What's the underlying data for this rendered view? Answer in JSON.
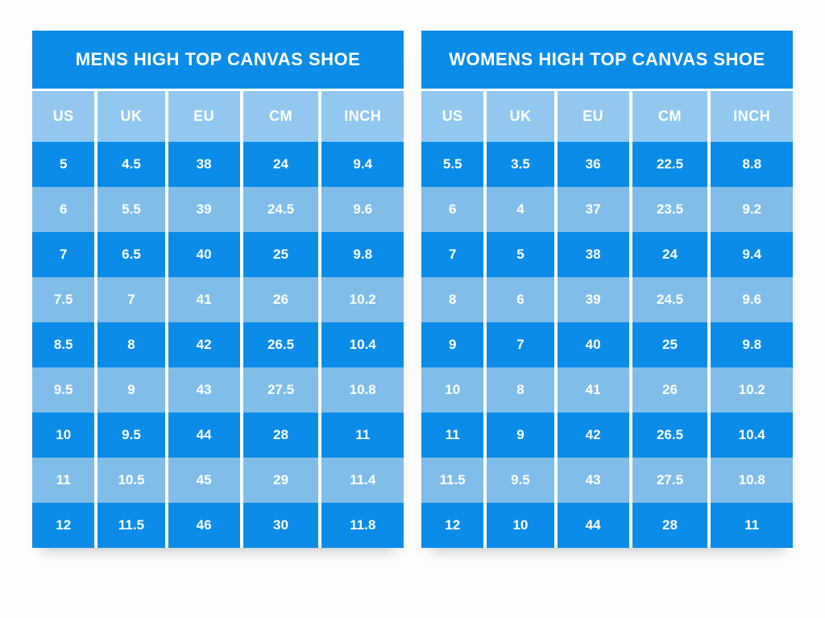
{
  "colors": {
    "dark_row": "#0b8ce8",
    "light_row": "#80bde9",
    "header_row": "#92c8f0",
    "separator": "#ffffff",
    "text": "#ffffff",
    "page_background": "#fdfdfd"
  },
  "chart_data": [
    {
      "type": "table",
      "title": "MENS HIGH TOP CANVAS SHOE",
      "columns": [
        "US",
        "UK",
        "EU",
        "CM",
        "INCH"
      ],
      "rows": [
        [
          "5",
          "4.5",
          "38",
          "24",
          "9.4"
        ],
        [
          "6",
          "5.5",
          "39",
          "24.5",
          "9.6"
        ],
        [
          "7",
          "6.5",
          "40",
          "25",
          "9.8"
        ],
        [
          "7.5",
          "7",
          "41",
          "26",
          "10.2"
        ],
        [
          "8.5",
          "8",
          "42",
          "26.5",
          "10.4"
        ],
        [
          "9.5",
          "9",
          "43",
          "27.5",
          "10.8"
        ],
        [
          "10",
          "9.5",
          "44",
          "28",
          "11"
        ],
        [
          "11",
          "10.5",
          "45",
          "29",
          "11.4"
        ],
        [
          "12",
          "11.5",
          "46",
          "30",
          "11.8"
        ]
      ]
    },
    {
      "type": "table",
      "title": "WOMENS HIGH TOP CANVAS SHOE",
      "columns": [
        "US",
        "UK",
        "EU",
        "CM",
        "INCH"
      ],
      "rows": [
        [
          "5.5",
          "3.5",
          "36",
          "22.5",
          "8.8"
        ],
        [
          "6",
          "4",
          "37",
          "23.5",
          "9.2"
        ],
        [
          "7",
          "5",
          "38",
          "24",
          "9.4"
        ],
        [
          "8",
          "6",
          "39",
          "24.5",
          "9.6"
        ],
        [
          "9",
          "7",
          "40",
          "25",
          "9.8"
        ],
        [
          "10",
          "8",
          "41",
          "26",
          "10.2"
        ],
        [
          "11",
          "9",
          "42",
          "26.5",
          "10.4"
        ],
        [
          "11.5",
          "9.5",
          "43",
          "27.5",
          "10.8"
        ],
        [
          "12",
          "10",
          "44",
          "28",
          "11"
        ]
      ]
    }
  ]
}
